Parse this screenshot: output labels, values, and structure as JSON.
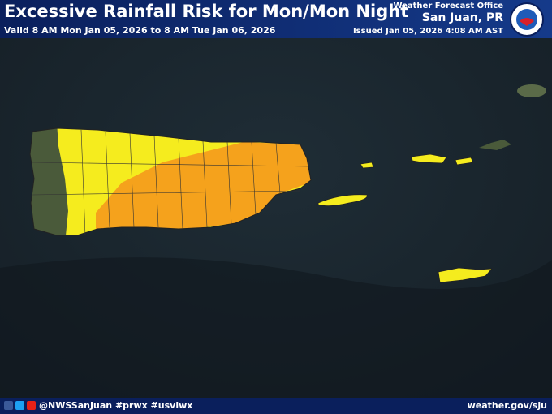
{
  "header": {
    "title": "Excessive Rainfall Risk for Mon/Mon Night",
    "valid": "Valid 8 AM Mon Jan 05, 2026 to 8 AM Tue Jan 06, 2026",
    "office_label": "Weather Forecast Office",
    "office": "San Juan, PR",
    "issued": "Issued Jan 05, 2026 4:08 AM AST"
  },
  "footer": {
    "social": "@NWSSanJuan #prwx #usviwx",
    "website": "weather.gov/sju"
  }
}
